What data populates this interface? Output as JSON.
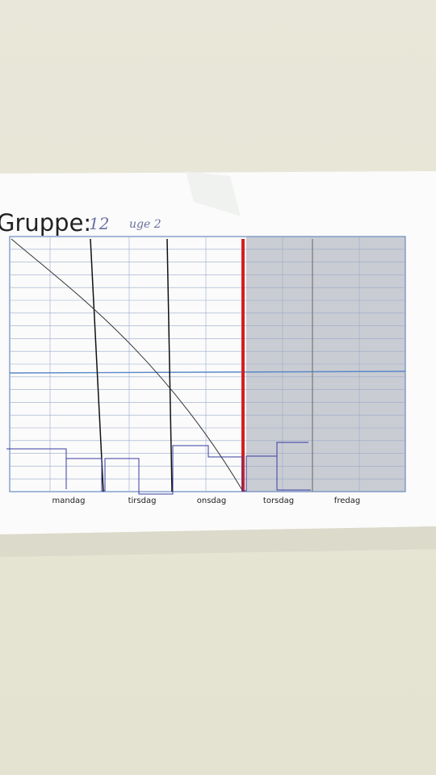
{
  "header": {
    "label": "Gruppe:",
    "group": "12",
    "note": "uge 2"
  },
  "days": [
    "mandag",
    "tirsdag",
    "onsdag",
    "torsdag",
    "fredag"
  ]
}
